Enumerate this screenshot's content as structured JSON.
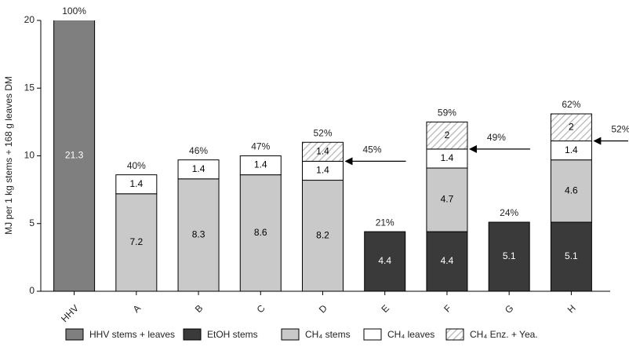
{
  "chart_data": {
    "type": "stacked_bar",
    "y_label": "MJ per 1 kg stems + 168 g leaves DM",
    "categories": [
      "HHV",
      "A",
      "B",
      "C",
      "D",
      "E",
      "F",
      "G",
      "H"
    ],
    "series": [
      {
        "name": "HHV stems + leaves",
        "color": "#7f7f7f",
        "label_color": "#ffffff",
        "values": [
          21.3,
          null,
          null,
          null,
          null,
          null,
          null,
          null,
          null
        ]
      },
      {
        "name": "EtOH stems",
        "color": "#3a3a3a",
        "label_color": "#ffffff",
        "values": [
          null,
          null,
          null,
          null,
          null,
          4.4,
          4.4,
          5.1,
          5.1
        ]
      },
      {
        "name": "CH₄ stems",
        "color": "#c9c9c9",
        "label_color": "#000000",
        "values": [
          null,
          7.2,
          8.3,
          8.6,
          8.2,
          null,
          4.7,
          null,
          4.6
        ]
      },
      {
        "name": "CH₄ leaves",
        "color": "#ffffff",
        "label_color": "#000000",
        "values": [
          null,
          1.4,
          1.4,
          1.4,
          1.4,
          null,
          1.4,
          null,
          1.4
        ]
      },
      {
        "name": "CH₄ Enz. + Yea.",
        "color": "#b5b5b5",
        "pattern": "hatch",
        "label_color": "#000000",
        "values": [
          null,
          null,
          null,
          null,
          1.4,
          null,
          2.0,
          null,
          2.0
        ]
      }
    ],
    "top_labels": [
      "100%",
      "40%",
      "46%",
      "47%",
      "52%",
      "21%",
      "59%",
      "24%",
      "62%"
    ],
    "annotations": [
      {
        "category": "D",
        "text": "45%"
      },
      {
        "category": "F",
        "text": "49%"
      },
      {
        "category": "H",
        "text": "52%"
      }
    ],
    "ylim": [
      0,
      20
    ],
    "yticks": [
      0,
      5,
      10,
      15,
      20
    ]
  }
}
